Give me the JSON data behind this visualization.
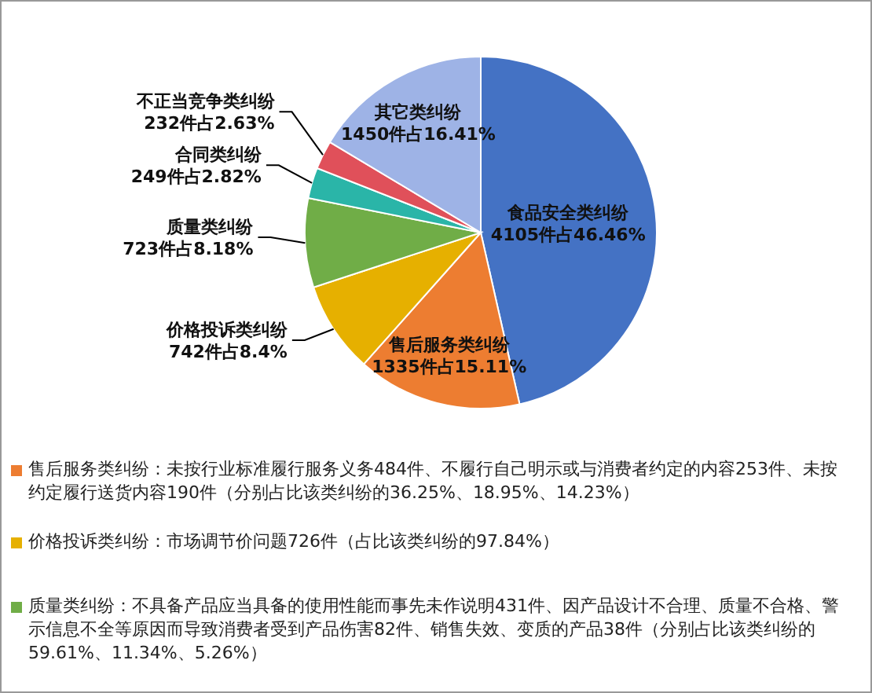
{
  "chart_data": {
    "type": "pie",
    "categories": [
      "食品安全类纠纷",
      "售后服务类纠纷",
      "价格投诉类纠纷",
      "质量类纠纷",
      "合同类纠纷",
      "不正当竞争类纠纷",
      "其它类纠纷"
    ],
    "values": [
      4105,
      1335,
      742,
      723,
      249,
      232,
      1450
    ],
    "value_labels": [
      "4105件占46.46%",
      "1335件占15.11%",
      "742件占8.4%",
      "723件占8.18%",
      "249件占2.82%",
      "232件占2.63%",
      "1450件占16.41%"
    ],
    "colors": [
      "#4472c4",
      "#ed7d31",
      "#e6b000",
      "#70ad47",
      "#2ab5a8",
      "#e0505a",
      "#9eb3e6"
    ],
    "legend": false,
    "annotations": [
      "售后服务类纠纷：未按行业标准履行服务义务484件、不履行自己明示或与消费者约定的内容253件、未按约定履行送货内容190件（分别占比该类纠纷的36.25%、18.95%、14.23%）",
      "价格投诉类纠纷：市场调节价问题726件（占比该类纠纷的97.84%）",
      "质量类纠纷：不具备产品应当具备的使用性能而事先未作说明431件、因产品设计不合理、质量不合格、警示信息不全等原因而导致消费者受到产品伤害82件、销售失效、变质的产品38件（分别占比该类纠纷的59.61%、11.34%、5.26%）"
    ]
  }
}
